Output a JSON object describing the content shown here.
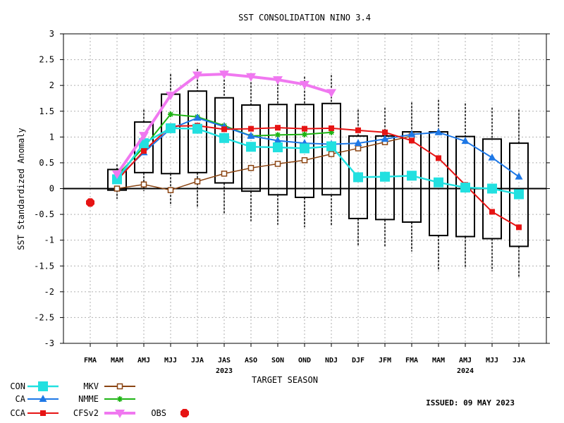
{
  "chart_data": {
    "type": "line",
    "title": "SST CONSOLIDATION NINO 3.4",
    "xlabel": "TARGET SEASON",
    "ylabel": "SST Standardized Anomaly",
    "ylim": [
      -3,
      3
    ],
    "yticks": [
      "3",
      "2.5",
      "2",
      "1.5",
      "1",
      "0.5",
      "0",
      "-0.5",
      "-1",
      "-1.5",
      "-2",
      "-2.5",
      "-3"
    ],
    "grid": true,
    "categories": [
      "FMA",
      "MAM",
      "AMJ",
      "MJJ",
      "JJA",
      "JAS",
      "ASO",
      "SON",
      "OND",
      "NDJ",
      "DJF",
      "JFM",
      "FMA",
      "MAM",
      "AMJ",
      "MJJ",
      "JJA"
    ],
    "year_labels": [
      {
        "text": "2023",
        "index": 5
      },
      {
        "text": "2024",
        "index": 14
      }
    ],
    "boxes": [
      null,
      {
        "whisker_low": -0.2,
        "low": -0.03,
        "high": 0.37,
        "whisker_high": 0.47
      },
      {
        "whisker_low": -0.05,
        "low": 0.31,
        "high": 1.29,
        "whisker_high": 1.53
      },
      {
        "whisker_low": -0.33,
        "low": 0.29,
        "high": 1.83,
        "whisker_high": 2.22
      },
      {
        "whisker_low": -0.38,
        "low": 0.31,
        "high": 1.89,
        "whisker_high": 2.32
      },
      {
        "whisker_low": -0.5,
        "low": 0.11,
        "high": 1.76,
        "whisker_high": 2.25
      },
      {
        "whisker_low": -0.63,
        "low": -0.05,
        "high": 1.62,
        "whisker_high": 2.2
      },
      {
        "whisker_low": -0.7,
        "low": -0.12,
        "high": 1.63,
        "whisker_high": 2.17
      },
      {
        "whisker_low": -0.75,
        "low": -0.17,
        "high": 1.63,
        "whisker_high": 2.17
      },
      {
        "whisker_low": -0.72,
        "low": -0.12,
        "high": 1.65,
        "whisker_high": 2.2
      },
      {
        "whisker_low": -1.1,
        "low": -0.58,
        "high": 1.02,
        "whisker_high": 1.53
      },
      {
        "whisker_low": -1.12,
        "low": -0.6,
        "high": 1.02,
        "whisker_high": 1.57
      },
      {
        "whisker_low": -1.22,
        "low": -0.65,
        "high": 1.1,
        "whisker_high": 1.67
      },
      {
        "whisker_low": -1.6,
        "low": -0.91,
        "high": 1.1,
        "whisker_high": 1.72
      },
      {
        "whisker_low": -1.55,
        "low": -0.93,
        "high": 1.01,
        "whisker_high": 1.65
      },
      {
        "whisker_low": -1.6,
        "low": -0.97,
        "high": 0.96,
        "whisker_high": 1.57
      },
      {
        "whisker_low": -1.73,
        "low": -1.12,
        "high": 0.88,
        "whisker_high": 1.53
      }
    ],
    "series": [
      {
        "name": "CON",
        "color": "#22e0e0",
        "marker": "square",
        "values": [
          null,
          0.18,
          0.88,
          1.17,
          1.16,
          0.98,
          0.81,
          0.8,
          0.78,
          0.82,
          0.22,
          0.23,
          0.25,
          0.12,
          0.02,
          0.0,
          -0.11
        ]
      },
      {
        "name": "CA",
        "color": "#1e78e6",
        "marker": "triangle",
        "values": [
          null,
          0.2,
          0.7,
          1.16,
          1.37,
          1.2,
          1.02,
          0.93,
          0.88,
          0.86,
          0.88,
          0.96,
          1.05,
          1.09,
          0.92,
          0.6,
          0.23
        ]
      },
      {
        "name": "CCA",
        "color": "#e61414",
        "marker": "square-small",
        "values": [
          null,
          0.16,
          0.73,
          1.21,
          1.22,
          1.15,
          1.16,
          1.18,
          1.16,
          1.17,
          1.13,
          1.09,
          0.93,
          0.59,
          0.07,
          -0.45,
          -0.75
        ]
      },
      {
        "name": "MKV",
        "color": "#8b4513",
        "marker": "open-square",
        "values": [
          null,
          0.0,
          0.08,
          -0.03,
          0.14,
          0.29,
          0.4,
          0.48,
          0.55,
          0.67,
          0.78,
          0.9,
          1.02,
          null,
          null,
          null,
          null
        ]
      },
      {
        "name": "NMME",
        "color": "#1eb414",
        "marker": "star",
        "values": [
          null,
          0.25,
          0.8,
          1.44,
          1.39,
          1.22,
          1.02,
          1.04,
          1.05,
          1.09,
          null,
          null,
          null,
          null,
          null,
          null,
          null
        ]
      },
      {
        "name": "CFSv2",
        "color": "#f078f0",
        "marker": "inverted-triangle",
        "values": [
          null,
          0.28,
          1.03,
          1.81,
          2.2,
          2.22,
          2.17,
          2.11,
          2.02,
          1.86,
          null,
          null,
          null,
          null,
          null,
          null,
          null
        ]
      },
      {
        "name": "OBS",
        "color": "#e61414",
        "marker": "octagon",
        "values": [
          -0.27,
          null,
          null,
          null,
          null,
          null,
          null,
          null,
          null,
          null,
          null,
          null,
          null,
          null,
          null,
          null,
          null
        ]
      }
    ],
    "legend_position": "bottom-left",
    "issued": "ISSUED: 09 MAY 2023"
  }
}
